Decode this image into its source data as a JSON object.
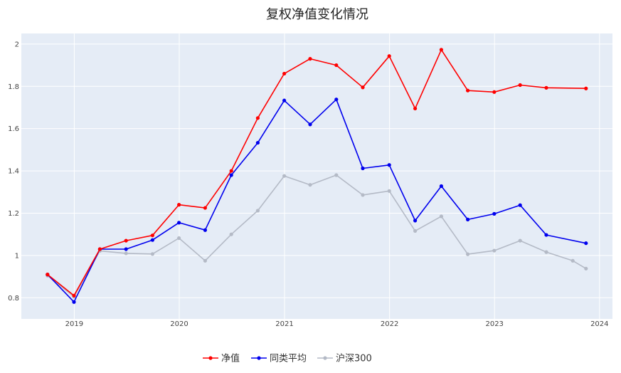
{
  "chart_data": {
    "type": "line",
    "title": "复权净值变化情况",
    "xlabel": "",
    "ylabel": "",
    "x_ticks": [
      "2019",
      "2020",
      "2021",
      "2022",
      "2023",
      "2024"
    ],
    "y_ticks": [
      "0.8",
      "1",
      "1.2",
      "1.4",
      "1.6",
      "1.8",
      "2"
    ],
    "xlim": [
      "2018-07-01",
      "2024-02-15"
    ],
    "ylim": [
      0.7,
      2.05
    ],
    "grid": true,
    "legend_position": "bottom",
    "series": [
      {
        "name": "净值",
        "color": "#ff0000",
        "x": [
          "2018-09-30",
          "2018-12-31",
          "2019-03-31",
          "2019-06-30",
          "2019-09-30",
          "2019-12-31",
          "2020-03-31",
          "2020-06-30",
          "2020-09-30",
          "2020-12-31",
          "2021-03-31",
          "2021-06-30",
          "2021-09-30",
          "2021-12-31",
          "2022-03-31",
          "2022-06-30",
          "2022-09-30",
          "2022-12-31",
          "2023-03-31",
          "2023-06-30",
          "2023-11-15"
        ],
        "values": [
          0.91,
          0.81,
          1.03,
          1.07,
          1.095,
          1.24,
          1.225,
          1.4,
          1.65,
          1.86,
          1.93,
          1.9,
          1.795,
          1.943,
          1.695,
          1.973,
          1.78,
          1.773,
          1.806,
          1.793,
          1.79
        ]
      },
      {
        "name": "同类平均",
        "color": "#0000ee",
        "x": [
          "2018-09-30",
          "2018-12-31",
          "2019-03-31",
          "2019-06-30",
          "2019-09-30",
          "2019-12-31",
          "2020-03-31",
          "2020-06-30",
          "2020-09-30",
          "2020-12-31",
          "2021-03-31",
          "2021-06-30",
          "2021-09-30",
          "2021-12-31",
          "2022-03-31",
          "2022-06-30",
          "2022-09-30",
          "2022-12-31",
          "2023-03-31",
          "2023-06-30",
          "2023-11-15"
        ],
        "values": [
          0.91,
          0.78,
          1.03,
          1.03,
          1.073,
          1.155,
          1.12,
          1.38,
          1.533,
          1.733,
          1.62,
          1.738,
          1.412,
          1.428,
          1.165,
          1.328,
          1.17,
          1.197,
          1.238,
          1.097,
          1.058
        ]
      },
      {
        "name": "沪深300",
        "color": "#b4bac6",
        "x": [
          "2018-09-30",
          "2018-12-31",
          "2019-03-31",
          "2019-06-30",
          "2019-09-30",
          "2019-12-31",
          "2020-03-31",
          "2020-06-30",
          "2020-09-30",
          "2020-12-31",
          "2021-03-31",
          "2021-06-30",
          "2021-09-30",
          "2021-12-31",
          "2022-03-31",
          "2022-06-30",
          "2022-09-30",
          "2022-12-31",
          "2023-03-31",
          "2023-06-30",
          "2023-09-30",
          "2023-11-15"
        ],
        "values": [
          0.905,
          0.805,
          1.022,
          1.01,
          1.007,
          1.082,
          0.975,
          1.1,
          1.212,
          1.376,
          1.334,
          1.38,
          1.286,
          1.305,
          1.116,
          1.185,
          1.006,
          1.023,
          1.07,
          1.016,
          0.975,
          0.938
        ]
      }
    ]
  }
}
